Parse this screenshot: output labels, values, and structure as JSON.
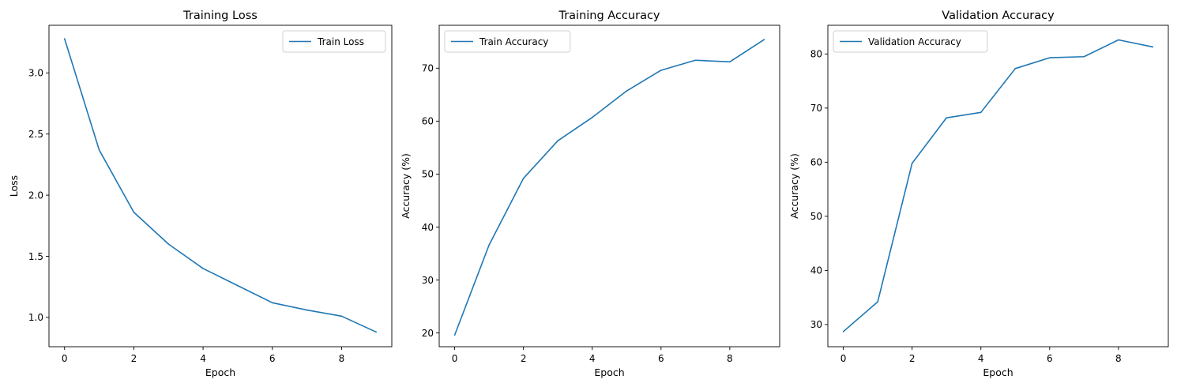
{
  "chart_data": [
    {
      "type": "line",
      "title": "Training Loss",
      "xlabel": "Epoch",
      "ylabel": "Loss",
      "xlim": [
        -0.45,
        9.45
      ],
      "ylim": [
        0.76,
        3.39
      ],
      "xticks": [
        0,
        2,
        4,
        6,
        8
      ],
      "yticks": [
        1.0,
        1.5,
        2.0,
        2.5,
        3.0
      ],
      "ytick_labels": [
        "1.0",
        "1.5",
        "2.0",
        "2.5",
        "3.0"
      ],
      "legend": "upper-right",
      "grid": false,
      "series": [
        {
          "name": "Train Loss",
          "color": "#1f77b4",
          "x": [
            0,
            1,
            2,
            3,
            4,
            5,
            6,
            7,
            8,
            9
          ],
          "values": [
            3.28,
            2.37,
            1.86,
            1.6,
            1.4,
            1.26,
            1.12,
            1.06,
            1.01,
            0.88
          ]
        }
      ]
    },
    {
      "type": "line",
      "title": "Training Accuracy",
      "xlabel": "Epoch",
      "ylabel": "Accuracy (%)",
      "xlim": [
        -0.45,
        9.45
      ],
      "ylim": [
        17.4,
        78.1
      ],
      "xticks": [
        0,
        2,
        4,
        6,
        8
      ],
      "yticks": [
        20,
        30,
        40,
        50,
        60,
        70
      ],
      "ytick_labels": [
        "20",
        "30",
        "40",
        "50",
        "60",
        "70"
      ],
      "legend": "upper-left",
      "grid": false,
      "series": [
        {
          "name": "Train Accuracy",
          "color": "#1f77b4",
          "x": [
            0,
            1,
            2,
            3,
            4,
            5,
            6,
            7,
            8,
            9
          ],
          "values": [
            19.6,
            36.6,
            49.2,
            56.3,
            60.7,
            65.7,
            69.6,
            71.5,
            71.2,
            75.4
          ]
        }
      ]
    },
    {
      "type": "line",
      "title": "Validation Accuracy",
      "xlabel": "Epoch",
      "ylabel": "Accuracy (%)",
      "xlim": [
        -0.45,
        9.45
      ],
      "ylim": [
        25.9,
        85.3
      ],
      "xticks": [
        0,
        2,
        4,
        6,
        8
      ],
      "yticks": [
        30,
        40,
        50,
        60,
        70,
        80
      ],
      "ytick_labels": [
        "30",
        "40",
        "50",
        "60",
        "70",
        "80"
      ],
      "legend": "upper-left",
      "grid": false,
      "series": [
        {
          "name": "Validation Accuracy",
          "color": "#1f77b4",
          "x": [
            0,
            1,
            2,
            3,
            4,
            5,
            6,
            7,
            8,
            9
          ],
          "values": [
            28.7,
            34.2,
            59.8,
            68.2,
            69.2,
            77.3,
            79.3,
            79.5,
            82.6,
            81.3
          ]
        }
      ]
    }
  ]
}
